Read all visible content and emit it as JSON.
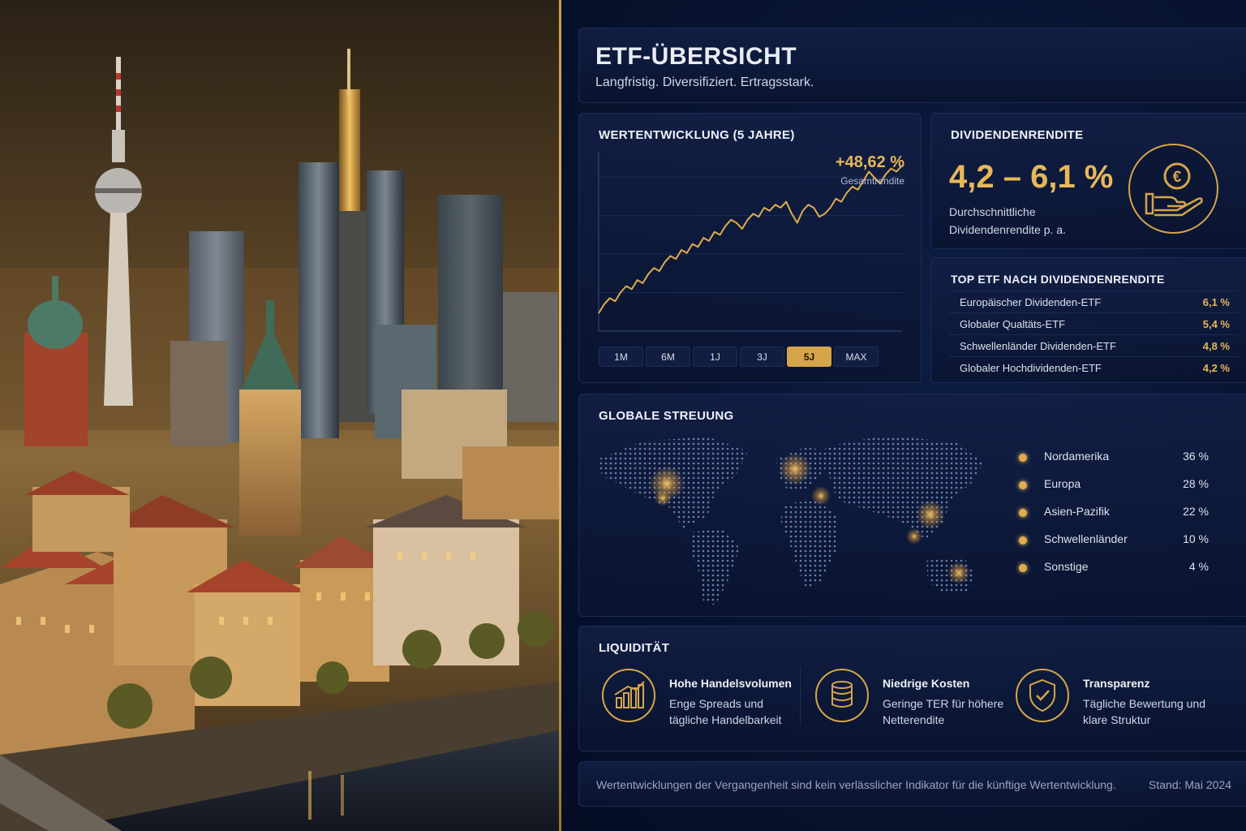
{
  "header": {
    "title": "ETF-ÜBERSICHT",
    "subtitle": "Langfristig. Diversifiziert. Ertragsstark."
  },
  "performance": {
    "title": "WERTENTWICKLUNG (5 JAHRE)",
    "total_return": "+48,62 %",
    "total_return_label": "Gesamtrendite",
    "ranges": [
      "1M",
      "6M",
      "1J",
      "3J",
      "5J",
      "MAX"
    ],
    "active_range": "5J"
  },
  "chart_data": {
    "type": "line",
    "title": "WERTENTWICKLUNG (5 JAHRE)",
    "xlabel": "",
    "ylabel": "",
    "series": [
      {
        "values": [
          0,
          3,
          5,
          4,
          7,
          9,
          8,
          11,
          10,
          13,
          15,
          14,
          17,
          19,
          18,
          21,
          20,
          23,
          22,
          25,
          24,
          27,
          26,
          29,
          31,
          30,
          28,
          31,
          33,
          32,
          35,
          34,
          36,
          35,
          37,
          33,
          30,
          34,
          36,
          35,
          32,
          33,
          35,
          38,
          37,
          40,
          42,
          41,
          44,
          47,
          45,
          43,
          46,
          48,
          47,
          49
        ]
      }
    ],
    "grid": true,
    "line_color": "#e0ac4c"
  },
  "dividend": {
    "title": "DIVIDENDENRENDITE",
    "range": "4,2 – 6,1 %",
    "description": "Durchschnittliche Dividendenrendite p. a.",
    "icon": "euro-hand-icon"
  },
  "top_etf": {
    "title": "TOP ETF NACH DIVIDENDENRENDITE",
    "rows": [
      {
        "name": "Europäischer Dividenden-ETF",
        "value": "6,1 %"
      },
      {
        "name": "Globaler Qualtäts-ETF",
        "value": "5,4 %"
      },
      {
        "name": "Schwellenländer Dividenden-ETF",
        "value": "4,8 %"
      },
      {
        "name": "Globaler Hochdividenden-ETF",
        "value": "4,2 %"
      }
    ]
  },
  "global": {
    "title": "GLOBALE STREUUNG",
    "regions": [
      {
        "name": "Nordamerika",
        "value": "36 %"
      },
      {
        "name": "Europa",
        "value": "28 %"
      },
      {
        "name": "Asien-Pazifik",
        "value": "22 %"
      },
      {
        "name": "Schwellenländer",
        "value": "10 %"
      },
      {
        "name": "Sonstige",
        "value": "4 %"
      }
    ]
  },
  "liquidity": {
    "title": "LIQUIDITÄT",
    "features": [
      {
        "heading": "Hohe Handelsvolumen",
        "text": "Enge Spreads und tägliche Handelbarkeit",
        "icon": "bar-chart-icon"
      },
      {
        "heading": "Niedrige Kosten",
        "text": "Geringe TER für höhere Netterendite",
        "icon": "coins-icon"
      },
      {
        "heading": "Transparenz",
        "text": "Tägliche Bewertung und klare Struktur",
        "icon": "shield-check-icon"
      }
    ]
  },
  "footer": {
    "disclaimer": "Wertentwicklungen der Vergangenheit sind kein verlässlicher Indikator für die künftige Wertentwicklung.",
    "date": "Stand: Mai 2024"
  },
  "colors": {
    "accent": "#d6a54a",
    "background": "#07132f"
  }
}
